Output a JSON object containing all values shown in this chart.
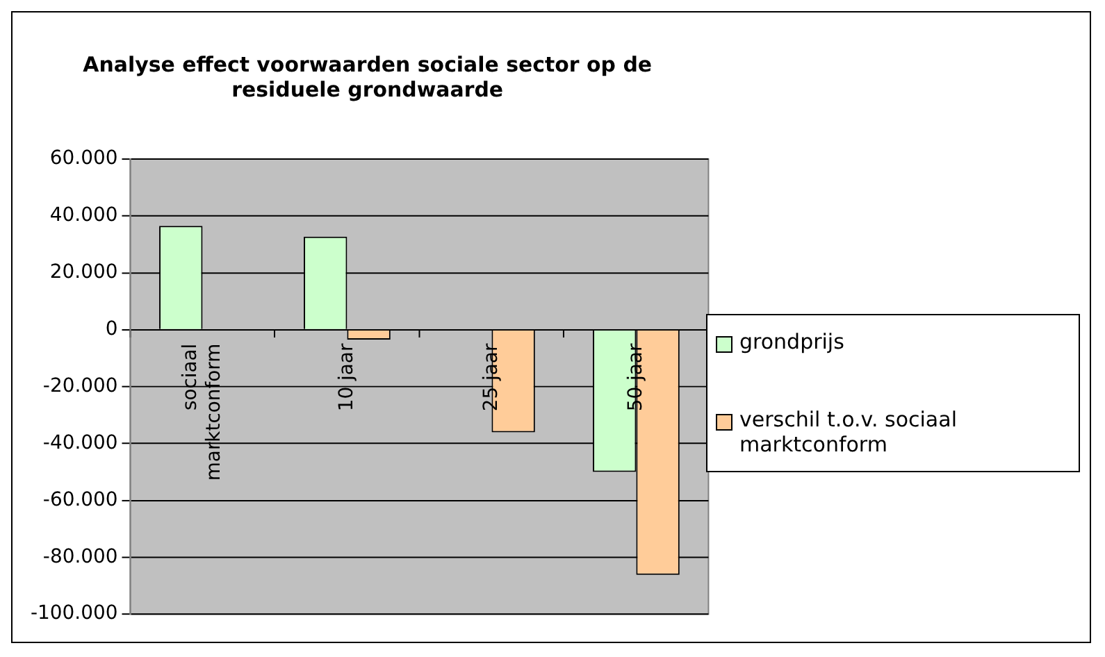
{
  "chart_data": {
    "type": "bar",
    "title": "Analyse effect voorwaarden sociale sector op de residuele grondwaarde",
    "categories": [
      "sociaal marktconform",
      "10 jaar",
      "25 jaar",
      "50 jaar"
    ],
    "series": [
      {
        "name": "grondprijs",
        "color": "#ccffcc",
        "values": [
          36500,
          32700,
          null,
          -50000
        ]
      },
      {
        "name": "verschil t.o.v. sociaal marktconform",
        "color": "#ffcc99",
        "values": [
          null,
          -3500,
          -36100,
          -86200
        ]
      }
    ],
    "ylim": [
      -100000,
      60000
    ],
    "yticks": [
      {
        "value": -100000,
        "label": "-100.000"
      },
      {
        "value": -80000,
        "label": "-80.000"
      },
      {
        "value": -60000,
        "label": "-60.000"
      },
      {
        "value": -40000,
        "label": "-40.000"
      },
      {
        "value": -20000,
        "label": "-20.000"
      },
      {
        "value": 0,
        "label": "0"
      },
      {
        "value": 20000,
        "label": "20.000"
      },
      {
        "value": 40000,
        "label": "40.000"
      },
      {
        "value": 60000,
        "label": "60.000"
      }
    ],
    "grid": "y",
    "legend": "right"
  }
}
